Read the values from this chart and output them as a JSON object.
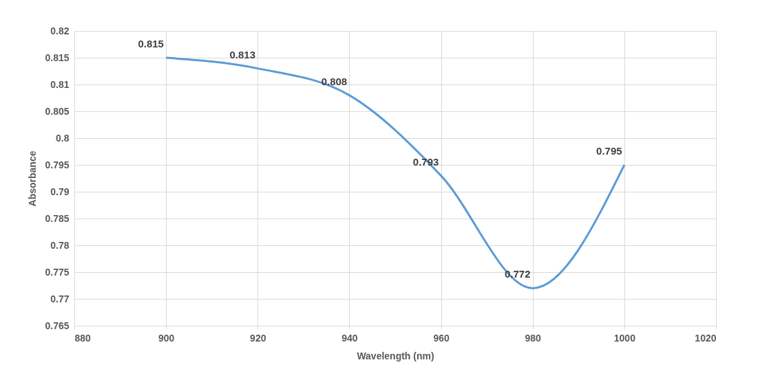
{
  "chart_data": {
    "type": "line",
    "xlabel": "Wavelength (nm)",
    "ylabel": "Absorbance",
    "x": [
      900,
      920,
      940,
      960,
      980,
      1000
    ],
    "series": [
      {
        "color": "#5b9bd5",
        "values": [
          0.815,
          0.813,
          0.808,
          0.793,
          0.772,
          0.795
        ]
      }
    ],
    "xlim": [
      880,
      1020
    ],
    "xticks": [
      880,
      900,
      920,
      940,
      960,
      980,
      1000,
      1020
    ],
    "ylim": [
      0.765,
      0.82
    ],
    "yticks": [
      0.765,
      0.77,
      0.775,
      0.78,
      0.785,
      0.79,
      0.795,
      0.8,
      0.805,
      0.81,
      0.815,
      0.82
    ],
    "grid": true,
    "data_labels": true,
    "marker": "none",
    "line_style": "solid"
  }
}
